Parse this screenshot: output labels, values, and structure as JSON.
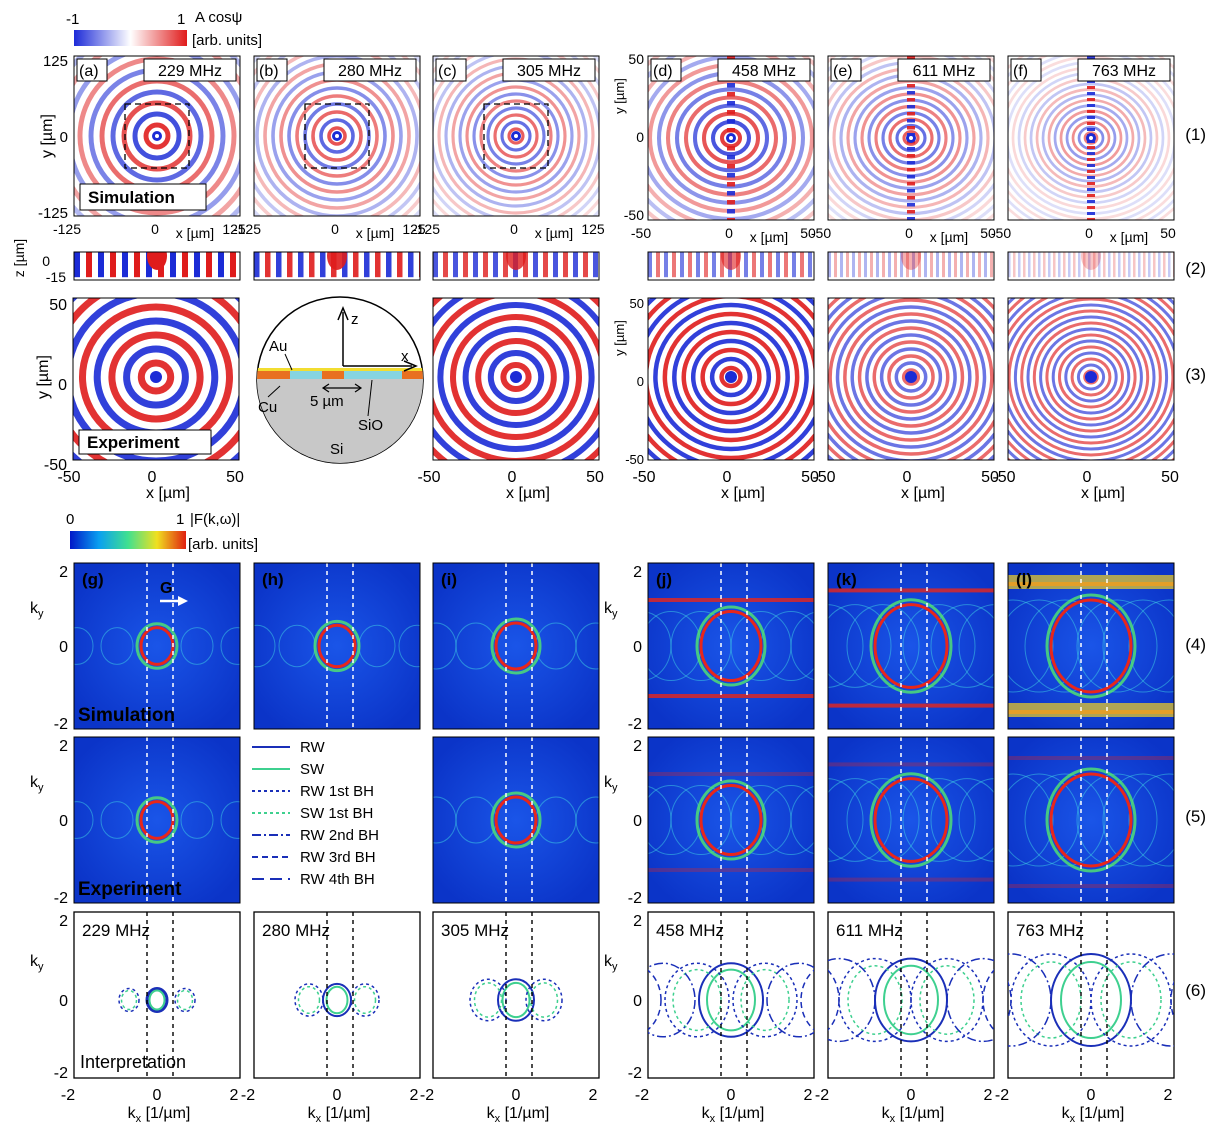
{
  "colorbar_top": {
    "min": "-1",
    "max": "1",
    "quantity": "A cosψ",
    "units": "[arb. units]",
    "colors": [
      "#1d2bd8",
      "#ffffff",
      "#e01b1b"
    ]
  },
  "colorbar_bottom": {
    "min": "0",
    "max": "1",
    "quantity": "|F(k,ω)|",
    "units": "[arb. units]"
  },
  "columns": [
    {
      "letter": "(a)",
      "freq": "229 MHz",
      "kletter": "(g)",
      "range_label": "125",
      "xmin": "-125",
      "xmax": "125",
      "dashed_box": true
    },
    {
      "letter": "(b)",
      "freq": "280 MHz",
      "kletter": "(h)",
      "range_label": "125",
      "xmin": "-125",
      "xmax": "125",
      "dashed_box": true
    },
    {
      "letter": "(c)",
      "freq": "305 MHz",
      "kletter": "(i)",
      "range_label": "125",
      "xmin": "-125",
      "xmax": "125",
      "dashed_box": true
    },
    {
      "letter": "(d)",
      "freq": "458 MHz",
      "kletter": "(j)",
      "range_label": "50",
      "xmin": "-50",
      "xmax": "50",
      "dashed_box": false
    },
    {
      "letter": "(e)",
      "freq": "611 MHz",
      "kletter": "(k)",
      "range_label": "50",
      "xmin": "-50",
      "xmax": "50",
      "dashed_box": false
    },
    {
      "letter": "(f)",
      "freq": "763 MHz",
      "kletter": "(l)",
      "range_label": "50",
      "xmin": "-50",
      "xmax": "50",
      "dashed_box": false
    }
  ],
  "row_labels": [
    "(1)",
    "(2)",
    "(3)",
    "(4)",
    "(5)",
    "(6)"
  ],
  "axis": {
    "y_um": "y [µm]",
    "x_um": "x [µm]",
    "z_um": "z [µm]",
    "ky": "k",
    "ky_sub": "y",
    "kx": "k",
    "kx_sub": "x",
    "k_units": " [1/µm]",
    "y1_ticks": [
      "125",
      "0",
      "-125"
    ],
    "y1_ticks_small": [
      "50",
      "0",
      "-50"
    ],
    "z_ticks": [
      "0",
      "-15"
    ],
    "y3_ticks": [
      "50",
      "0",
      "-50"
    ],
    "x3_ticks": [
      "-50",
      "0",
      "50"
    ],
    "k_ticks": [
      "-2",
      "0",
      "2"
    ]
  },
  "labels": {
    "simulation": "Simulation",
    "experiment": "Experiment",
    "interpretation": "Interpretation",
    "g_vector": "G"
  },
  "inset": {
    "z": "z",
    "x": "x",
    "au": "Au",
    "cu": "Cu",
    "sio": "SiO",
    "si": "Si",
    "period": "5 µm"
  },
  "legend": [
    {
      "label": "RW",
      "color": "#1a2fb8",
      "dash": ""
    },
    {
      "label": "SW",
      "color": "#3ed08f",
      "dash": ""
    },
    {
      "label": "RW 1st BH",
      "color": "#1a2fb8",
      "dash": "3,3"
    },
    {
      "label": "SW 1st BH",
      "color": "#3ed08f",
      "dash": "3,3"
    },
    {
      "label": "RW 2nd BH",
      "color": "#1a2fb8",
      "dash": "9,3,2,3"
    },
    {
      "label": "RW 3rd BH",
      "color": "#1a2fb8",
      "dash": "6,4"
    },
    {
      "label": "RW 4th BH",
      "color": "#1a2fb8",
      "dash": "12,6"
    }
  ]
}
